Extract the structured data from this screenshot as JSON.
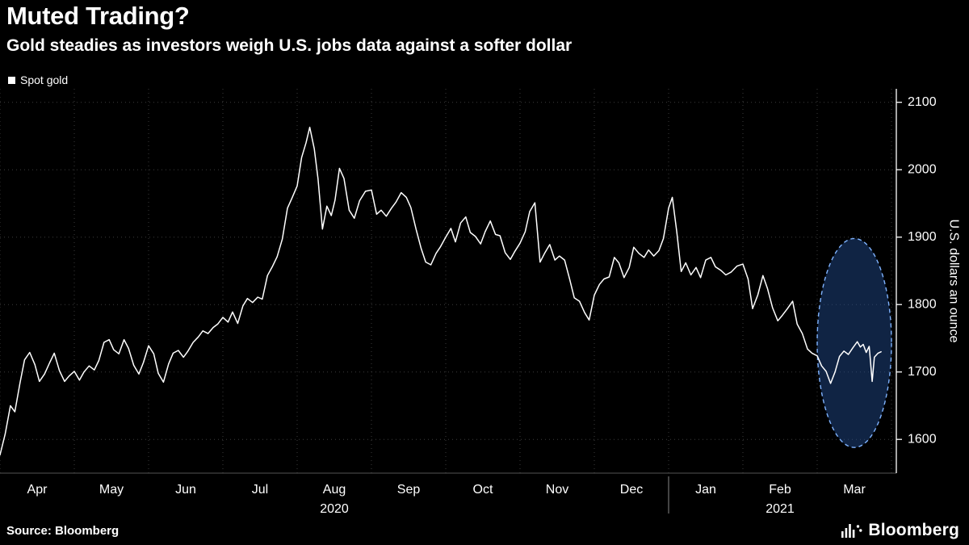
{
  "header": {
    "title": "Muted Trading?",
    "subtitle": "Gold steadies as investors weigh U.S. jobs data against a softer dollar"
  },
  "legend": {
    "label": "Spot gold",
    "marker_color": "#ffffff"
  },
  "footer": {
    "source": "Source: Bloomberg",
    "brand": "Bloomberg"
  },
  "chart_data": {
    "type": "line",
    "title": "Muted Trading?",
    "subtitle": "Gold steadies as investors weigh U.S. jobs data against a softer dollar",
    "background": "#000000",
    "grid": {
      "show": true,
      "color": "#3d3d3d",
      "style": "dotted"
    },
    "x_axis": {
      "months": [
        "Apr",
        "May",
        "Jun",
        "Jul",
        "Aug",
        "Sep",
        "Oct",
        "Nov",
        "Dec",
        "Jan",
        "Feb",
        "Mar"
      ],
      "years": [
        {
          "label": "2020",
          "month_center": 4.5
        },
        {
          "label": "2021",
          "month_center": 10.5
        }
      ],
      "year_separator_month": 9,
      "range_months": [
        0,
        12
      ],
      "x_unit": "months since Apr 2020 gridline"
    },
    "y_axis": {
      "label": "U.S. dollars an ounce",
      "ticks": [
        1600,
        1700,
        1800,
        1900,
        2000,
        2100
      ],
      "range": [
        1550,
        2120
      ],
      "side": "right"
    },
    "highlight_ellipse": {
      "center_month": 11.5,
      "center_value": 1743,
      "rx_months": 0.5,
      "ry_value": 155,
      "fill": "rgba(35,80,150,0.45)",
      "stroke": "#7fb3ff"
    },
    "series": [
      {
        "name": "Spot gold",
        "color": "#ffffff",
        "points": [
          [
            0.0,
            1577
          ],
          [
            0.07,
            1608
          ],
          [
            0.14,
            1650
          ],
          [
            0.2,
            1641
          ],
          [
            0.27,
            1684
          ],
          [
            0.33,
            1718
          ],
          [
            0.4,
            1729
          ],
          [
            0.47,
            1711
          ],
          [
            0.53,
            1686
          ],
          [
            0.6,
            1697
          ],
          [
            0.67,
            1714
          ],
          [
            0.73,
            1728
          ],
          [
            0.8,
            1702
          ],
          [
            0.87,
            1686
          ],
          [
            0.93,
            1694
          ],
          [
            1.0,
            1701
          ],
          [
            1.07,
            1688
          ],
          [
            1.13,
            1700
          ],
          [
            1.2,
            1709
          ],
          [
            1.27,
            1703
          ],
          [
            1.33,
            1717
          ],
          [
            1.4,
            1744
          ],
          [
            1.47,
            1748
          ],
          [
            1.53,
            1733
          ],
          [
            1.6,
            1727
          ],
          [
            1.67,
            1748
          ],
          [
            1.73,
            1735
          ],
          [
            1.8,
            1710
          ],
          [
            1.87,
            1697
          ],
          [
            1.93,
            1714
          ],
          [
            2.0,
            1739
          ],
          [
            2.07,
            1727
          ],
          [
            2.13,
            1698
          ],
          [
            2.2,
            1685
          ],
          [
            2.27,
            1712
          ],
          [
            2.33,
            1728
          ],
          [
            2.4,
            1732
          ],
          [
            2.47,
            1722
          ],
          [
            2.53,
            1731
          ],
          [
            2.6,
            1744
          ],
          [
            2.67,
            1752
          ],
          [
            2.73,
            1761
          ],
          [
            2.8,
            1757
          ],
          [
            2.87,
            1766
          ],
          [
            2.93,
            1771
          ],
          [
            3.0,
            1781
          ],
          [
            3.07,
            1774
          ],
          [
            3.13,
            1789
          ],
          [
            3.2,
            1772
          ],
          [
            3.27,
            1798
          ],
          [
            3.33,
            1809
          ],
          [
            3.4,
            1803
          ],
          [
            3.47,
            1811
          ],
          [
            3.53,
            1808
          ],
          [
            3.6,
            1843
          ],
          [
            3.67,
            1857
          ],
          [
            3.73,
            1871
          ],
          [
            3.8,
            1897
          ],
          [
            3.87,
            1943
          ],
          [
            3.93,
            1958
          ],
          [
            4.0,
            1976
          ],
          [
            4.06,
            2018
          ],
          [
            4.12,
            2040
          ],
          [
            4.17,
            2063
          ],
          [
            4.23,
            2031
          ],
          [
            4.28,
            1987
          ],
          [
            4.34,
            1912
          ],
          [
            4.4,
            1946
          ],
          [
            4.46,
            1932
          ],
          [
            4.51,
            1955
          ],
          [
            4.57,
            2002
          ],
          [
            4.63,
            1987
          ],
          [
            4.7,
            1940
          ],
          [
            4.77,
            1928
          ],
          [
            4.84,
            1954
          ],
          [
            4.92,
            1968
          ],
          [
            5.0,
            1970
          ],
          [
            5.07,
            1934
          ],
          [
            5.13,
            1940
          ],
          [
            5.2,
            1931
          ],
          [
            5.27,
            1943
          ],
          [
            5.33,
            1952
          ],
          [
            5.4,
            1966
          ],
          [
            5.47,
            1959
          ],
          [
            5.53,
            1944
          ],
          [
            5.6,
            1912
          ],
          [
            5.67,
            1883
          ],
          [
            5.73,
            1863
          ],
          [
            5.8,
            1859
          ],
          [
            5.87,
            1876
          ],
          [
            5.93,
            1886
          ],
          [
            6.0,
            1900
          ],
          [
            6.07,
            1913
          ],
          [
            6.13,
            1893
          ],
          [
            6.2,
            1921
          ],
          [
            6.27,
            1930
          ],
          [
            6.33,
            1907
          ],
          [
            6.4,
            1901
          ],
          [
            6.47,
            1890
          ],
          [
            6.53,
            1908
          ],
          [
            6.6,
            1924
          ],
          [
            6.67,
            1904
          ],
          [
            6.73,
            1902
          ],
          [
            6.8,
            1877
          ],
          [
            6.87,
            1867
          ],
          [
            6.93,
            1879
          ],
          [
            7.0,
            1891
          ],
          [
            7.07,
            1908
          ],
          [
            7.13,
            1938
          ],
          [
            7.2,
            1951
          ],
          [
            7.27,
            1863
          ],
          [
            7.33,
            1876
          ],
          [
            7.4,
            1889
          ],
          [
            7.47,
            1866
          ],
          [
            7.53,
            1872
          ],
          [
            7.6,
            1866
          ],
          [
            7.67,
            1837
          ],
          [
            7.73,
            1810
          ],
          [
            7.8,
            1805
          ],
          [
            7.87,
            1788
          ],
          [
            7.93,
            1777
          ],
          [
            8.0,
            1814
          ],
          [
            8.07,
            1830
          ],
          [
            8.13,
            1838
          ],
          [
            8.2,
            1841
          ],
          [
            8.27,
            1870
          ],
          [
            8.33,
            1862
          ],
          [
            8.4,
            1840
          ],
          [
            8.47,
            1855
          ],
          [
            8.53,
            1885
          ],
          [
            8.6,
            1876
          ],
          [
            8.67,
            1870
          ],
          [
            8.73,
            1881
          ],
          [
            8.8,
            1872
          ],
          [
            8.87,
            1880
          ],
          [
            8.93,
            1898
          ],
          [
            9.0,
            1943
          ],
          [
            9.05,
            1959
          ],
          [
            9.11,
            1908
          ],
          [
            9.17,
            1849
          ],
          [
            9.23,
            1862
          ],
          [
            9.3,
            1844
          ],
          [
            9.37,
            1855
          ],
          [
            9.43,
            1840
          ],
          [
            9.5,
            1866
          ],
          [
            9.57,
            1870
          ],
          [
            9.63,
            1856
          ],
          [
            9.7,
            1851
          ],
          [
            9.77,
            1844
          ],
          [
            9.84,
            1848
          ],
          [
            9.92,
            1857
          ],
          [
            10.0,
            1860
          ],
          [
            10.07,
            1838
          ],
          [
            10.13,
            1794
          ],
          [
            10.2,
            1814
          ],
          [
            10.27,
            1843
          ],
          [
            10.33,
            1824
          ],
          [
            10.4,
            1795
          ],
          [
            10.47,
            1776
          ],
          [
            10.53,
            1784
          ],
          [
            10.6,
            1794
          ],
          [
            10.67,
            1805
          ],
          [
            10.73,
            1771
          ],
          [
            10.8,
            1757
          ],
          [
            10.87,
            1734
          ],
          [
            10.93,
            1728
          ],
          [
            11.0,
            1724
          ],
          [
            11.06,
            1709
          ],
          [
            11.12,
            1701
          ],
          [
            11.18,
            1683
          ],
          [
            11.24,
            1700
          ],
          [
            11.3,
            1723
          ],
          [
            11.36,
            1731
          ],
          [
            11.42,
            1726
          ],
          [
            11.48,
            1736
          ],
          [
            11.54,
            1745
          ],
          [
            11.58,
            1737
          ],
          [
            11.62,
            1741
          ],
          [
            11.66,
            1729
          ],
          [
            11.7,
            1738
          ],
          [
            11.74,
            1686
          ],
          [
            11.77,
            1722
          ],
          [
            11.82,
            1728
          ],
          [
            11.86,
            1730
          ]
        ]
      }
    ]
  }
}
